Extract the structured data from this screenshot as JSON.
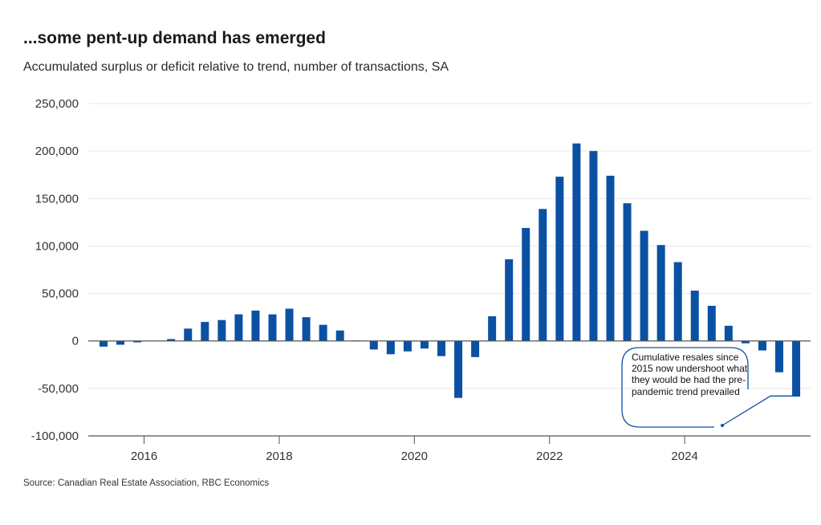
{
  "header": {
    "title": "...some pent-up demand has emerged",
    "subtitle": "Accumulated surplus or deficit relative to trend, number of transactions, SA"
  },
  "footer": {
    "source": "Source: Canadian Real Estate Association, RBC Economics"
  },
  "colors": {
    "bar": "#0b51a3",
    "grid": "#e6e6e6",
    "axis": "#555555",
    "annotation": "#0b51a3"
  },
  "chart_data": {
    "type": "bar",
    "title": "...some pent-up demand has emerged",
    "subtitle": "Accumulated surplus or deficit relative to trend, number of transactions, SA",
    "xlabel": "",
    "ylabel": "",
    "ylim": [
      -100000,
      250000
    ],
    "yticks": [
      -100000,
      -50000,
      0,
      50000,
      100000,
      150000,
      200000,
      250000
    ],
    "ytick_labels": [
      "-100,000",
      "-50,000",
      "0",
      "50,000",
      "100,000",
      "150,000",
      "200,000",
      "250,000"
    ],
    "xticks": [
      {
        "label": "2016",
        "index": 3
      },
      {
        "label": "2018",
        "index": 11
      },
      {
        "label": "2020",
        "index": 19
      },
      {
        "label": "2022",
        "index": 27
      },
      {
        "label": "2024",
        "index": 35
      }
    ],
    "grid": true,
    "legend": "none",
    "categories": [
      "2015Q2",
      "2015Q3",
      "2015Q4",
      "2016Q1",
      "2016Q2",
      "2016Q3",
      "2016Q4",
      "2017Q1",
      "2017Q2",
      "2017Q3",
      "2017Q4",
      "2018Q1",
      "2018Q2",
      "2018Q3",
      "2018Q4",
      "2019Q1",
      "2019Q2",
      "2019Q3",
      "2019Q4",
      "2020Q1",
      "2020Q2",
      "2020Q3",
      "2020Q4",
      "2021Q1",
      "2021Q2",
      "2021Q3",
      "2021Q4",
      "2022Q1",
      "2022Q2",
      "2022Q3",
      "2022Q4",
      "2023Q1",
      "2023Q2",
      "2023Q3",
      "2023Q4",
      "2024Q1",
      "2024Q2",
      "2024Q3",
      "2024Q4",
      "2025Q1",
      "2025Q2",
      "2025Q3"
    ],
    "series": [
      {
        "name": "Accumulated surplus/deficit",
        "values": [
          -6000,
          -4000,
          -1500,
          0,
          2000,
          13000,
          20000,
          22000,
          28000,
          32000,
          28000,
          34000,
          25000,
          17000,
          11000,
          500,
          -9000,
          -14000,
          -11000,
          -8000,
          -16000,
          -60000,
          -17000,
          26000,
          86000,
          119000,
          139000,
          173000,
          208000,
          200000,
          174000,
          145000,
          116000,
          101000,
          83000,
          53000,
          37000,
          16000,
          -2500,
          -10000,
          -33000,
          -58000
        ]
      }
    ],
    "annotations": [
      {
        "text": "Cumulative resales since 2015 now undershoot what they would be had the pre-pandemic trend prevailed",
        "points_to": "2025Q3"
      }
    ]
  }
}
